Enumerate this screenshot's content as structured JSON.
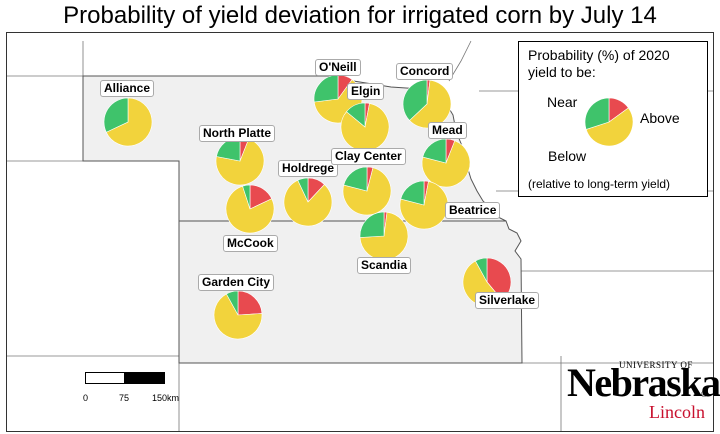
{
  "title": "Probability of yield deviation for irrigated corn by July 14",
  "colors": {
    "near": "#f2d33c",
    "above": "#3fc36b",
    "below": "#e84a4f",
    "state_fill": "#f0f0f0",
    "border": "#555555"
  },
  "legend": {
    "title_line1": "Probability (%) of 2020",
    "title_line2": "yield to be:",
    "near_label": "Near",
    "above_label": "Above",
    "below_label": "Below",
    "note": "(relative to long-term yield)",
    "example": {
      "near": 55,
      "above": 30,
      "below": 15
    }
  },
  "scale_bar": {
    "ticks": [
      "0",
      "75",
      "150km"
    ]
  },
  "logo": {
    "university": "UNIVERSITY OF",
    "name": "Nebraska",
    "campus": "Lincoln",
    "reg": "®"
  },
  "map_data": {
    "type": "pie-map",
    "region": "Nebraska",
    "sites": [
      {
        "name": "Alliance",
        "near": 68,
        "above": 32,
        "below": 0
      },
      {
        "name": "O'Neill",
        "near": 63,
        "above": 27,
        "below": 10
      },
      {
        "name": "Elgin",
        "near": 83,
        "above": 14,
        "below": 3
      },
      {
        "name": "Concord",
        "near": 61,
        "above": 37,
        "below": 2
      },
      {
        "name": "North Platte",
        "near": 72,
        "above": 22,
        "below": 6
      },
      {
        "name": "Mead",
        "near": 73,
        "above": 21,
        "below": 6
      },
      {
        "name": "Holdrege",
        "near": 81,
        "above": 7,
        "below": 12
      },
      {
        "name": "Clay Center",
        "near": 75,
        "above": 21,
        "below": 4
      },
      {
        "name": "McCook",
        "near": 77,
        "above": 5,
        "below": 18
      },
      {
        "name": "Beatrice",
        "near": 76,
        "above": 21,
        "below": 3
      },
      {
        "name": "Scandia",
        "near": 72,
        "above": 26,
        "below": 2
      },
      {
        "name": "Silverlake",
        "near": 53,
        "above": 8,
        "below": 39
      },
      {
        "name": "Garden City",
        "near": 68,
        "above": 8,
        "below": 24
      }
    ]
  }
}
